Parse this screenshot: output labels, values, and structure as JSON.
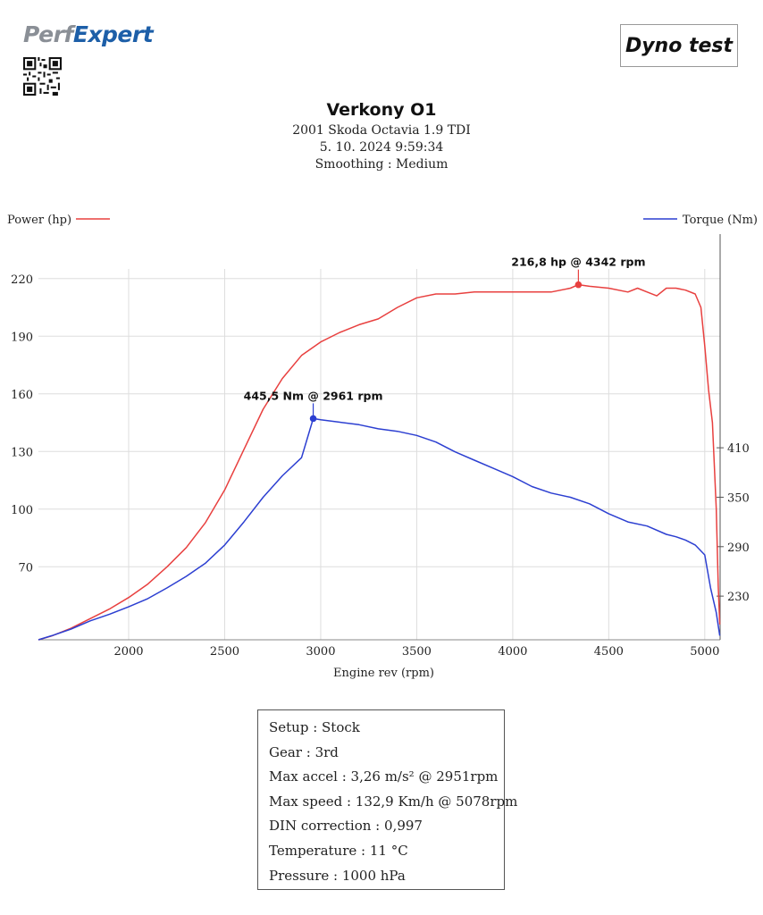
{
  "header": {
    "logo_part1": "Perf",
    "logo_part2": "Expert",
    "badge": "Dyno test"
  },
  "titles": {
    "title": "Verkony O1",
    "vehicle": "2001 Skoda Octavia 1.9 TDI",
    "datetime": "5. 10. 2024 9:59:34",
    "smoothing": "Smoothing : Medium"
  },
  "colors": {
    "power": "#e8403f",
    "torque": "#2c3fd1",
    "grid": "#dddddd"
  },
  "chart_data": {
    "type": "line",
    "xlabel": "Engine rev (rpm)",
    "xlim": [
      1530,
      5080
    ],
    "xticks": [
      2000,
      2500,
      3000,
      3500,
      4000,
      4500,
      5000
    ],
    "left_axis": {
      "label": "Power (hp)",
      "ticks": [
        70,
        100,
        130,
        160,
        190,
        220
      ],
      "ylim": [
        32,
        225
      ]
    },
    "right_axis": {
      "label": "Torque (Nm)",
      "ticks": [
        230,
        290,
        350,
        410
      ],
      "ylim": [
        177,
        627
      ]
    },
    "grid": true,
    "legend": [
      "top-left",
      "top-right"
    ],
    "series": [
      {
        "name": "Power (hp)",
        "axis": "left",
        "x": [
          1530,
          1600,
          1700,
          1800,
          1900,
          2000,
          2100,
          2200,
          2300,
          2400,
          2500,
          2600,
          2700,
          2800,
          2900,
          3000,
          3100,
          3200,
          3300,
          3400,
          3500,
          3600,
          3700,
          3800,
          3900,
          4000,
          4100,
          4200,
          4300,
          4342,
          4400,
          4500,
          4600,
          4650,
          4700,
          4750,
          4800,
          4850,
          4900,
          4950,
          4980,
          5000,
          5020,
          5040,
          5060,
          5070,
          5078
        ],
        "values": [
          32,
          34,
          38,
          43,
          48,
          54,
          61,
          70,
          80,
          93,
          110,
          131,
          152,
          168,
          180,
          187,
          192,
          196,
          199,
          205,
          210,
          212,
          212,
          213,
          213,
          213,
          213,
          213,
          215,
          216.8,
          216,
          215,
          213,
          215,
          213,
          211,
          215,
          215,
          214,
          212,
          205,
          185,
          162,
          145,
          100,
          60,
          40
        ]
      },
      {
        "name": "Torque (Nm)",
        "axis": "right",
        "x": [
          1530,
          1600,
          1700,
          1800,
          1900,
          2000,
          2100,
          2200,
          2300,
          2400,
          2500,
          2600,
          2700,
          2800,
          2900,
          2961,
          3000,
          3100,
          3200,
          3300,
          3400,
          3500,
          3600,
          3700,
          3800,
          3900,
          4000,
          4100,
          4200,
          4300,
          4400,
          4500,
          4600,
          4700,
          4800,
          4850,
          4900,
          4950,
          5000,
          5030,
          5060,
          5078
        ],
        "values": [
          177,
          182,
          190,
          200,
          208,
          217,
          227,
          240,
          254,
          270,
          292,
          320,
          350,
          376,
          398,
          445.5,
          444,
          441,
          438,
          433,
          430,
          425,
          417,
          405,
          395,
          385,
          375,
          363,
          355,
          350,
          342,
          330,
          320,
          315,
          305,
          302,
          298,
          292,
          280,
          240,
          210,
          182
        ]
      }
    ],
    "annotations": [
      {
        "series": "Power (hp)",
        "x": 4342,
        "y": 216.8,
        "label": "216,8 hp @ 4342 rpm"
      },
      {
        "series": "Torque (Nm)",
        "x": 2961,
        "y": 445.5,
        "label": "445,5 Nm @ 2961 rpm"
      }
    ]
  },
  "info": {
    "lines": [
      "Setup : Stock",
      "Gear : 3rd",
      "Max accel : 3,26 m/s² @ 2951rpm",
      "Max speed : 132,9 Km/h @ 5078rpm",
      "DIN correction : 0,997",
      "Temperature : 11 °C",
      "Pressure : 1000 hPa"
    ]
  }
}
